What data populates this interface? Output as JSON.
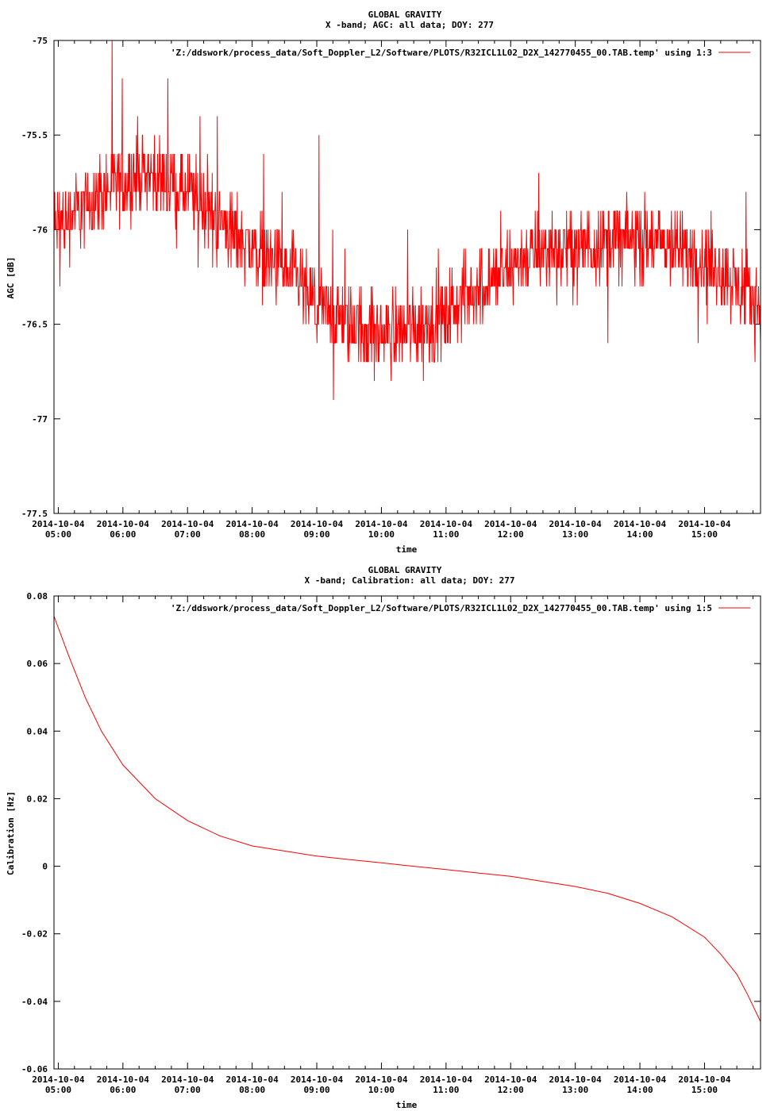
{
  "colors": {
    "series": "#ff0000",
    "axis": "#000000",
    "background": "#ffffff"
  },
  "chart_data": [
    {
      "type": "line",
      "title": "GLOBAL GRAVITY",
      "subtitle": "X -band; AGC: all data; DOY: 277",
      "xlabel": "time",
      "ylabel": "AGC [dB]",
      "ylim": [
        -77.5,
        -75
      ],
      "xlim": [
        "2014-10-04 04:56",
        "2014-10-04 15:52"
      ],
      "grid": false,
      "legend_position": "top-right",
      "yticks": [
        -77.5,
        -77,
        -76.5,
        -76,
        -75.5,
        -75
      ],
      "ytick_labels": [
        "-77.5",
        "-77",
        "-76.5",
        "-76",
        "-75.5",
        "-75"
      ],
      "xticks": [
        "2014-10-04 05:00",
        "2014-10-04 06:00",
        "2014-10-04 07:00",
        "2014-10-04 08:00",
        "2014-10-04 09:00",
        "2014-10-04 10:00",
        "2014-10-04 11:00",
        "2014-10-04 12:00",
        "2014-10-04 13:00",
        "2014-10-04 14:00",
        "2014-10-04 15:00"
      ],
      "xtick_labels": [
        [
          "2014-10-04",
          "05:00"
        ],
        [
          "2014-10-04",
          "06:00"
        ],
        [
          "2014-10-04",
          "07:00"
        ],
        [
          "2014-10-04",
          "08:00"
        ],
        [
          "2014-10-04",
          "09:00"
        ],
        [
          "2014-10-04",
          "10:00"
        ],
        [
          "2014-10-04",
          "11:00"
        ],
        [
          "2014-10-04",
          "12:00"
        ],
        [
          "2014-10-04",
          "13:00"
        ],
        [
          "2014-10-04",
          "14:00"
        ],
        [
          "2014-10-04",
          "15:00"
        ]
      ],
      "series": [
        {
          "name": "'Z:/ddswork/process_data/Soft_Doppler_L2/Software/PLOTS/R32ICL1L02_D2X_142770455_00.TAB.temp' using 1:3",
          "noise_amplitude_db": 0.3,
          "x": [
            "2014-10-04 04:56",
            "2014-10-04 05:30",
            "2014-10-04 06:00",
            "2014-10-04 06:20",
            "2014-10-04 06:40",
            "2014-10-04 07:00",
            "2014-10-04 07:30",
            "2014-10-04 08:00",
            "2014-10-04 08:30",
            "2014-10-04 09:00",
            "2014-10-04 09:30",
            "2014-10-04 10:00",
            "2014-10-04 10:30",
            "2014-10-04 11:00",
            "2014-10-04 11:30",
            "2014-10-04 12:00",
            "2014-10-04 12:30",
            "2014-10-04 13:00",
            "2014-10-04 13:30",
            "2014-10-04 14:00",
            "2014-10-04 14:30",
            "2014-10-04 15:00",
            "2014-10-04 15:30",
            "2014-10-04 15:52"
          ],
          "values": [
            -76.0,
            -75.85,
            -75.75,
            -75.7,
            -75.75,
            -75.8,
            -75.95,
            -76.1,
            -76.2,
            -76.4,
            -76.5,
            -76.55,
            -76.5,
            -76.45,
            -76.3,
            -76.2,
            -76.1,
            -76.1,
            -76.05,
            -76.05,
            -76.1,
            -76.15,
            -76.3,
            -76.4
          ]
        }
      ]
    },
    {
      "type": "line",
      "title": "GLOBAL GRAVITY",
      "subtitle": "X -band; Calibration: all data; DOY: 277",
      "xlabel": "time",
      "ylabel": "Calibration [Hz]",
      "ylim": [
        -0.06,
        0.08
      ],
      "xlim": [
        "2014-10-04 04:56",
        "2014-10-04 15:52"
      ],
      "grid": false,
      "legend_position": "top-right",
      "yticks": [
        -0.06,
        -0.04,
        -0.02,
        0,
        0.02,
        0.04,
        0.06,
        0.08
      ],
      "ytick_labels": [
        "-0.06",
        "-0.04",
        "-0.02",
        "0",
        "0.02",
        "0.04",
        "0.06",
        "0.08"
      ],
      "xticks": [
        "2014-10-04 05:00",
        "2014-10-04 06:00",
        "2014-10-04 07:00",
        "2014-10-04 08:00",
        "2014-10-04 09:00",
        "2014-10-04 10:00",
        "2014-10-04 11:00",
        "2014-10-04 12:00",
        "2014-10-04 13:00",
        "2014-10-04 14:00",
        "2014-10-04 15:00"
      ],
      "xtick_labels": [
        [
          "2014-10-04",
          "05:00"
        ],
        [
          "2014-10-04",
          "06:00"
        ],
        [
          "2014-10-04",
          "07:00"
        ],
        [
          "2014-10-04",
          "08:00"
        ],
        [
          "2014-10-04",
          "09:00"
        ],
        [
          "2014-10-04",
          "10:00"
        ],
        [
          "2014-10-04",
          "11:00"
        ],
        [
          "2014-10-04",
          "12:00"
        ],
        [
          "2014-10-04",
          "13:00"
        ],
        [
          "2014-10-04",
          "14:00"
        ],
        [
          "2014-10-04",
          "15:00"
        ]
      ],
      "series": [
        {
          "name": "'Z:/ddswork/process_data/Soft_Doppler_L2/Software/PLOTS/R32ICL1L02_D2X_142770455_00.TAB.temp' using 1:5",
          "x": [
            "2014-10-04 04:56",
            "2014-10-04 05:10",
            "2014-10-04 05:25",
            "2014-10-04 05:40",
            "2014-10-04 06:00",
            "2014-10-04 06:30",
            "2014-10-04 07:00",
            "2014-10-04 07:30",
            "2014-10-04 08:00",
            "2014-10-04 08:30",
            "2014-10-04 09:00",
            "2014-10-04 09:30",
            "2014-10-04 10:00",
            "2014-10-04 10:30",
            "2014-10-04 11:00",
            "2014-10-04 11:30",
            "2014-10-04 12:00",
            "2014-10-04 12:30",
            "2014-10-04 13:00",
            "2014-10-04 13:30",
            "2014-10-04 14:00",
            "2014-10-04 14:30",
            "2014-10-04 15:00",
            "2014-10-04 15:15",
            "2014-10-04 15:30",
            "2014-10-04 15:40",
            "2014-10-04 15:52"
          ],
          "values": [
            0.074,
            0.062,
            0.05,
            0.04,
            0.03,
            0.02,
            0.0135,
            0.009,
            0.006,
            0.0045,
            0.003,
            0.002,
            0.001,
            0.0,
            -0.001,
            -0.002,
            -0.003,
            -0.0045,
            -0.006,
            -0.008,
            -0.011,
            -0.015,
            -0.021,
            -0.026,
            -0.032,
            -0.038,
            -0.046
          ]
        }
      ]
    }
  ]
}
